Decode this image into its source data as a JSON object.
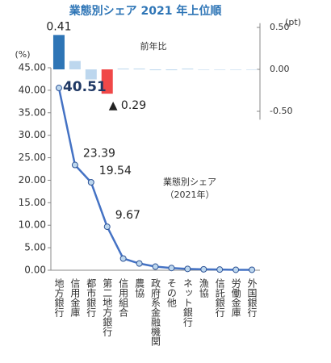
{
  "chart_data": [
    {
      "type": "bar",
      "title": "業態別シェア 2021 年上位順",
      "label": "前年比",
      "ylabel": "(pt)",
      "categories": [
        "地方銀行",
        "信用金庫",
        "都市銀行",
        "第二地方銀行",
        "信用組合",
        "農協",
        "政府系金融機関",
        "その他",
        "ネット銀行",
        "漁協",
        "信託銀行",
        "労働金庫",
        "外国銀行"
      ],
      "values": [
        0.41,
        0.1,
        -0.12,
        -0.29,
        0.01,
        0.01,
        -0.01,
        -0.01,
        0.01,
        0.0,
        0.0,
        0.0,
        0.0
      ],
      "value_labels": [
        "0.41",
        null,
        null,
        "▲ 0.29",
        null,
        null,
        null,
        null,
        null,
        null,
        null,
        null,
        null
      ],
      "colors": [
        "#2e75b6",
        "#bdd7ee",
        "#bdd7ee",
        "#f04848",
        "#bdd7ee",
        "#bdd7ee",
        "#bdd7ee",
        "#bdd7ee",
        "#bdd7ee",
        "#bdd7ee",
        "#bdd7ee",
        "#bdd7ee",
        "#bdd7ee"
      ],
      "ylim": [
        -0.6,
        0.55
      ],
      "yticks": [
        {
          "value": 0.5,
          "label": "0.50"
        },
        {
          "value": 0,
          "label": "0.00"
        },
        {
          "value": -0.5,
          "label": "-0.50"
        }
      ]
    },
    {
      "type": "line",
      "label": [
        "業態別シェア",
        "（2021年）"
      ],
      "ylabel": "(%)",
      "color": "#4472c4",
      "values": [
        40.51,
        23.39,
        19.54,
        9.67,
        2.6,
        1.5,
        0.8,
        0.5,
        0.3,
        0.2,
        0.15,
        0.1,
        0.1
      ],
      "value_labels": [
        "40.51",
        "23.39",
        "19.54",
        "9.67",
        null,
        null,
        null,
        null,
        null,
        null,
        null,
        null,
        null
      ],
      "ylim": [
        0,
        45
      ],
      "yticks": [
        {
          "value": 0,
          "label": "0.00"
        },
        {
          "value": 5,
          "label": "5.00"
        },
        {
          "value": 10,
          "label": "10.00"
        },
        {
          "value": 15,
          "label": "15.00"
        },
        {
          "value": 20,
          "label": "20.00"
        },
        {
          "value": 25,
          "label": "25.00"
        },
        {
          "value": 30,
          "label": "30.00"
        },
        {
          "value": 35,
          "label": "35.00"
        },
        {
          "value": 40,
          "label": "40.00"
        },
        {
          "value": 45,
          "label": "45.00"
        }
      ]
    }
  ]
}
